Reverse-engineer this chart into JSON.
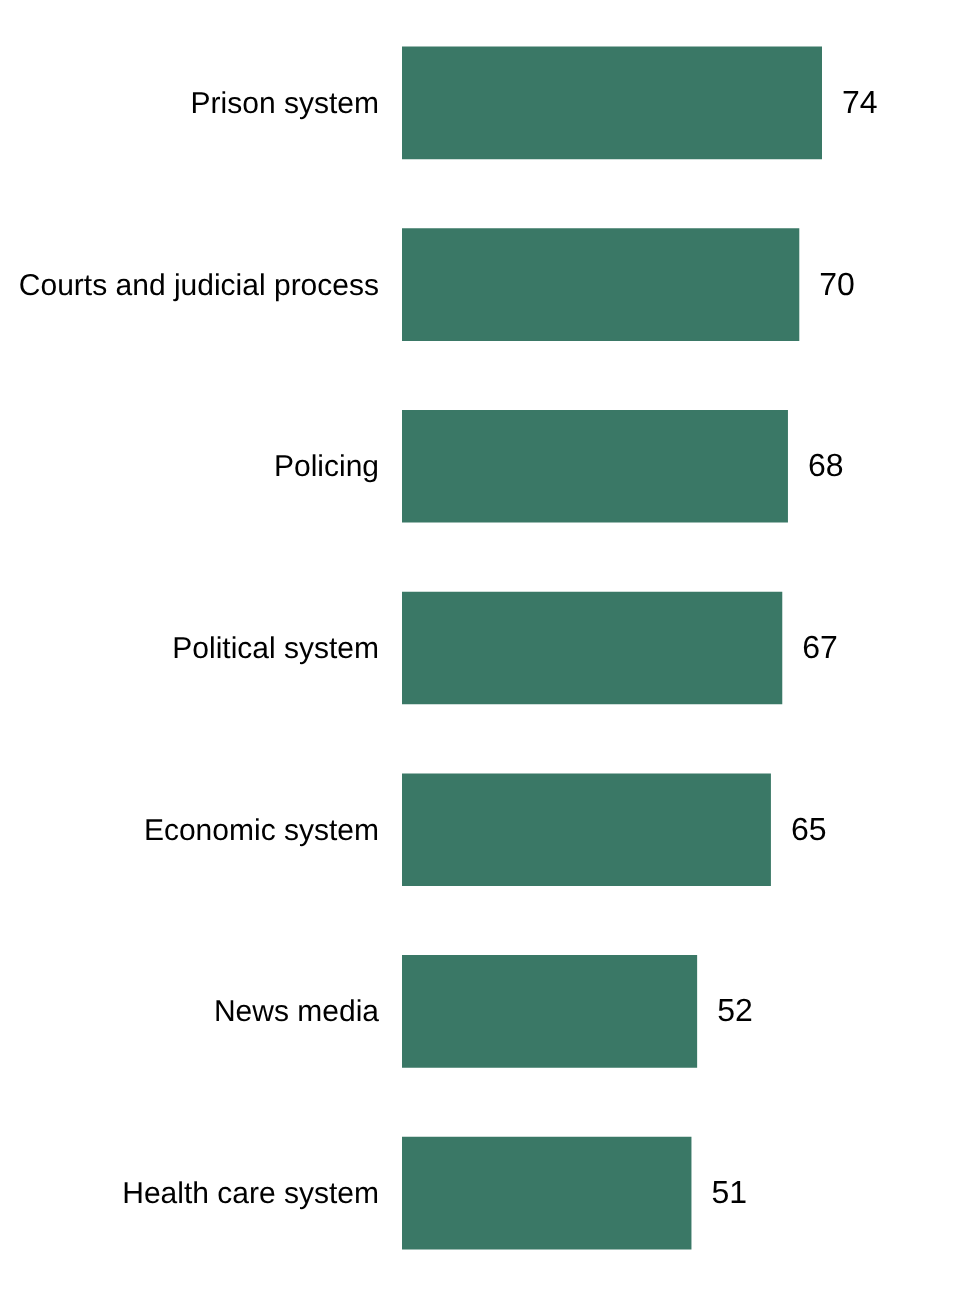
{
  "chart_data": {
    "type": "bar",
    "orientation": "horizontal",
    "data_labels": true,
    "categories": [
      "Prison system",
      "Courts and judicial process",
      "Policing",
      "Political system",
      "Economic system",
      "News media",
      "Health care system"
    ],
    "values": [
      74,
      70,
      68,
      67,
      65,
      52,
      51
    ],
    "color": "#3a7866"
  }
}
